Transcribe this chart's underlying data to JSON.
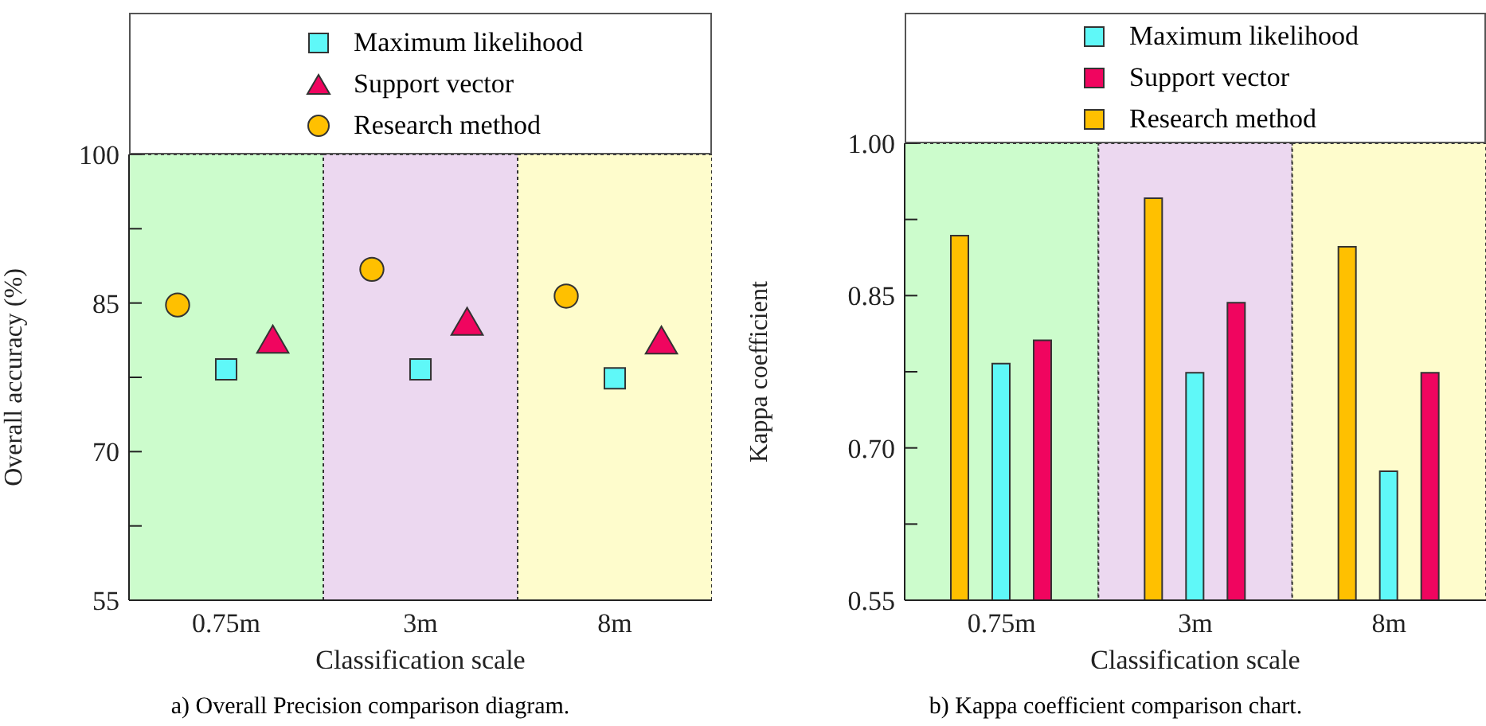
{
  "chart_data": [
    {
      "type": "scatter",
      "xlabel": "Classification scale",
      "ylabel": "Overall accuracy (%)",
      "categories": [
        "0.75m",
        "3m",
        "8m"
      ],
      "series": [
        {
          "name": "Maximum likelihood",
          "color": "#5ff8f8",
          "marker": "square",
          "values": [
            78.3,
            78.3,
            77.4
          ]
        },
        {
          "name": "Support vector",
          "color": "#f0055f",
          "marker": "triangle",
          "values": [
            80.9,
            82.7,
            80.8
          ]
        },
        {
          "name": "Research method",
          "color": "#ffc000",
          "marker": "circle",
          "values": [
            84.8,
            88.4,
            85.7
          ]
        }
      ],
      "ylim": [
        55,
        100
      ],
      "yticks": [
        55,
        {
          "value": 62.5,
          "label": null
        },
        70,
        {
          "value": 77.5,
          "label": null
        },
        85,
        {
          "value": 92.5,
          "label": null
        },
        100
      ],
      "bands": [
        {
          "axis": "x",
          "from": "0.75m",
          "to": "0.75m",
          "color": "#ccfccc"
        },
        {
          "axis": "x",
          "from": "3m",
          "to": "3m",
          "color": "#ecd8f0"
        },
        {
          "axis": "x",
          "from": "8m",
          "to": "8m",
          "color": "#fefccc"
        }
      ],
      "legend": "top",
      "annotations": [
        "a) Overall Precision comparison diagram."
      ]
    },
    {
      "type": "bar",
      "xlabel": "Classification scale",
      "ylabel": "Kappa coefficient",
      "categories": [
        "0.75m",
        "3m",
        "8m"
      ],
      "series": [
        {
          "name": "Maximum likelihood",
          "color": "#5ff8f8",
          "values": [
            0.783,
            0.774,
            0.677
          ]
        },
        {
          "name": "Support vector",
          "color": "#f0055f",
          "values": [
            0.806,
            0.843,
            0.774
          ]
        },
        {
          "name": "Research method",
          "color": "#ffc000",
          "values": [
            0.909,
            0.946,
            0.898
          ]
        }
      ],
      "ylim": [
        0.55,
        1
      ],
      "yticks": [
        0.55,
        {
          "value": 0.625,
          "label": null
        },
        {
          "value": 0.7,
          "label": "0.70"
        },
        {
          "value": 0.775,
          "label": null
        },
        0.85,
        {
          "value": 0.925,
          "label": null
        },
        {
          "value": 1,
          "label": "1.00"
        }
      ],
      "bands": [
        {
          "axis": "x",
          "from": "0.75m",
          "to": "0.75m",
          "color": "#ccfccc"
        },
        {
          "axis": "x",
          "from": "3m",
          "to": "3m",
          "color": "#ecd8f0"
        },
        {
          "axis": "x",
          "from": "8m",
          "to": "8m",
          "color": "#fefccc"
        }
      ],
      "legend": "top",
      "annotations": [
        "b) Kappa coefficient comparison chart."
      ]
    }
  ]
}
